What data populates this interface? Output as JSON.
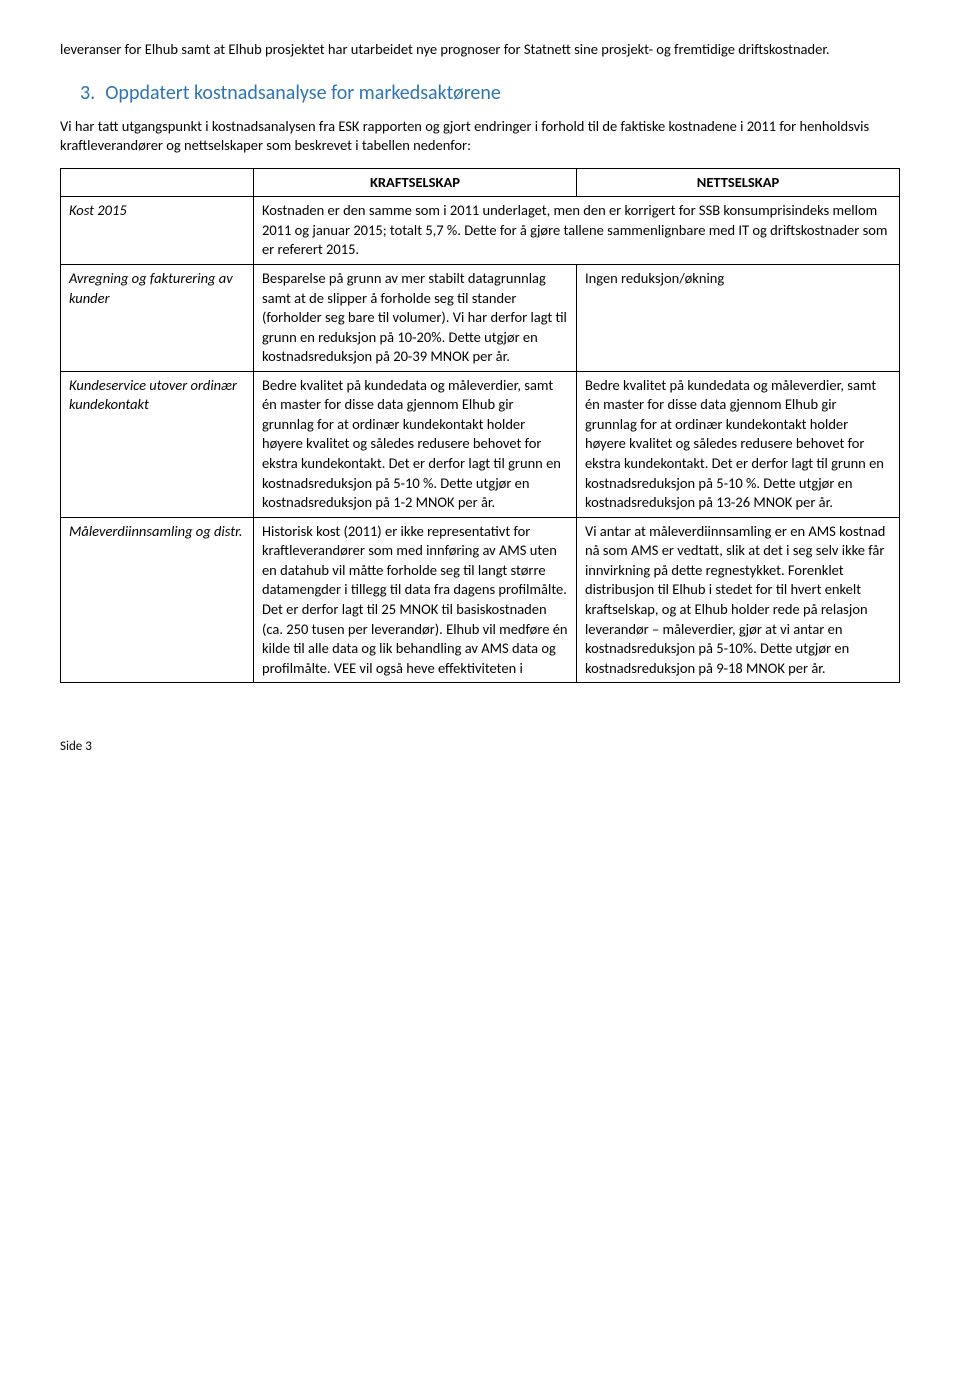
{
  "intro": "leveranser for Elhub samt at Elhub prosjektet har utarbeidet nye prognoser for Statnett sine prosjekt- og fremtidige driftskostnader.",
  "heading_num": "3.",
  "heading_text": "Oppdatert kostnadsanalyse for markedsaktørene",
  "section_body": "Vi har tatt utgangspunkt i kostnadsanalysen fra ESK rapporten og gjort endringer i forhold til de faktiske kostnadene i 2011 for henholdsvis kraftleverandører og nettselskaper som beskrevet i tabellen nedenfor:",
  "table": {
    "header": {
      "blank": "",
      "col2": "KRAFTSELSKAP",
      "col3": "NETTSELSKAP"
    },
    "rows": [
      {
        "label": "Kost 2015",
        "merged": "Kostnaden er den samme som i 2011 underlaget, men den er korrigert for SSB konsumprisindeks mellom 2011 og januar 2015; totalt 5,7 %. Dette for å gjøre tallene sammenlignbare med IT og driftskostnader som er referert 2015."
      },
      {
        "label": "Avregning og fakturering av kunder",
        "c2": "Besparelse på grunn av mer stabilt datagrunnlag samt at de slipper å forholde seg til stander (forholder seg bare til volumer). Vi har derfor lagt til grunn en reduksjon på 10-20%. Dette utgjør en kostnadsreduksjon på 20-39 MNOK per år.",
        "c3": "Ingen reduksjon/økning"
      },
      {
        "label": "Kundeservice utover ordinær kundekontakt",
        "c2": "Bedre kvalitet på kundedata og måleverdier, samt én master for disse data gjennom Elhub gir grunnlag for at ordinær kundekontakt holder høyere kvalitet og således redusere behovet for ekstra kundekontakt. Det er derfor lagt til grunn en kostnadsreduksjon på 5-10 %. Dette utgjør en kostnadsreduksjon på 1-2 MNOK per år.",
        "c3": "Bedre kvalitet på kundedata og måleverdier, samt én master for disse data gjennom Elhub gir grunnlag for at ordinær kundekontakt holder høyere kvalitet og således redusere behovet for ekstra kundekontakt. Det er derfor lagt til grunn en kostnadsreduksjon på 5-10 %. Dette utgjør en kostnadsreduksjon på 13-26 MNOK per år."
      },
      {
        "label": "Måleverdiinnsamling og distr.",
        "c2": "Historisk kost (2011) er ikke representativt for kraftleverandører som med innføring av AMS uten en datahub vil måtte forholde seg til langt større datamengder i tillegg til data fra dagens profilmålte. Det er derfor lagt til 25 MNOK til basiskostnaden (ca. 250 tusen per leverandør). Elhub vil medføre én kilde til alle data og lik behandling av AMS data og profilmålte. VEE vil også heve effektiviteten i",
        "c3": "Vi antar at måleverdiinnsamling er en AMS kostnad nå som AMS er vedtatt, slik at det i seg selv ikke får innvirkning på dette regnestykket. Forenklet distribusjon til Elhub i stedet for til hvert enkelt kraftselskap, og at Elhub holder rede på relasjon leverandør – måleverdier, gjør at vi antar en kostnadsreduksjon på 5-10%. Dette utgjør en kostnadsreduksjon på 9-18 MNOK per år."
      }
    ]
  },
  "footer": "Side 3"
}
